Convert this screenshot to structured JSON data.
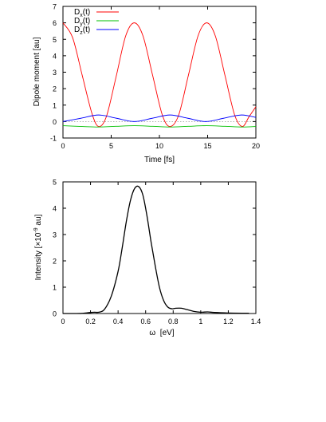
{
  "chart_data": [
    {
      "type": "line",
      "xlabel": "Time [fs]",
      "ylabel": "Dipole moment [au]",
      "xlim": [
        0,
        20
      ],
      "ylim": [
        -1,
        7
      ],
      "xticks": [
        0,
        5,
        10,
        15,
        20
      ],
      "yticks": [
        -1,
        0,
        1,
        2,
        3,
        4,
        5,
        6,
        7
      ],
      "grid": false,
      "legend_position": "top-left",
      "zero_line": true,
      "series": [
        {
          "name": "D_x(t)",
          "label_main": "D",
          "label_sub": "x",
          "label_rest": "(t)",
          "color": "#ff0000",
          "x": [
            0,
            1,
            2,
            3,
            3.7,
            4.5,
            5.5,
            6.5,
            7.4,
            8.3,
            9.3,
            10.3,
            11.1,
            12,
            13,
            14,
            14.9,
            15.8,
            16.8,
            17.8,
            18.6,
            19.3,
            20
          ],
          "y": [
            6.0,
            5.1,
            2.8,
            0.5,
            -0.3,
            0.3,
            2.7,
            5.2,
            6.0,
            5.2,
            2.8,
            0.4,
            -0.3,
            0.4,
            2.8,
            5.2,
            6.0,
            5.2,
            2.8,
            0.4,
            -0.3,
            0.3,
            0.9
          ]
        },
        {
          "name": "D_y(t)",
          "label_main": "D",
          "label_sub": "y",
          "label_rest": "(t)",
          "color": "#00c000",
          "x": [
            0,
            2,
            3.7,
            5.5,
            7.4,
            9.3,
            11.1,
            13,
            14.9,
            16.8,
            18.6,
            20
          ],
          "y": [
            -0.25,
            -0.3,
            -0.33,
            -0.29,
            -0.25,
            -0.29,
            -0.33,
            -0.29,
            -0.25,
            -0.29,
            -0.33,
            -0.3
          ]
        },
        {
          "name": "D_z(t)",
          "label_main": "D",
          "label_sub": "z",
          "label_rest": "(t)",
          "color": "#0000ff",
          "x": [
            0,
            1.85,
            3.7,
            5.55,
            7.4,
            9.25,
            11.1,
            12.95,
            14.8,
            16.65,
            18.5,
            20
          ],
          "y": [
            0.0,
            0.2,
            0.4,
            0.2,
            0.0,
            0.2,
            0.4,
            0.2,
            0.0,
            0.2,
            0.4,
            0.25
          ]
        }
      ]
    },
    {
      "type": "line",
      "xlabel": "ω  [eV]",
      "ylabel_main": "Intensity [×10",
      "ylabel_sup": "-9",
      "ylabel_rest": " au]",
      "xlim": [
        0,
        1.4
      ],
      "ylim": [
        0,
        5
      ],
      "xticks": [
        "0",
        "0.2",
        "0.4",
        "0.6",
        "0.8",
        "1",
        "1.2",
        "1.4"
      ],
      "yticks": [
        0,
        1,
        2,
        3,
        4,
        5
      ],
      "grid": false,
      "series": [
        {
          "color": "#000000",
          "x": [
            0,
            0.1,
            0.15,
            0.2,
            0.23,
            0.26,
            0.3,
            0.35,
            0.4,
            0.43,
            0.46,
            0.49,
            0.52,
            0.55,
            0.58,
            0.61,
            0.64,
            0.67,
            0.7,
            0.73,
            0.76,
            0.79,
            0.82,
            0.86,
            0.9,
            0.95,
            1.0,
            1.05,
            1.1,
            1.2,
            1.3,
            1.35
          ],
          "y": [
            0.0,
            0.0,
            0.01,
            0.04,
            0.05,
            0.05,
            0.15,
            0.65,
            1.6,
            2.5,
            3.5,
            4.3,
            4.75,
            4.82,
            4.5,
            3.7,
            2.7,
            1.8,
            1.0,
            0.5,
            0.25,
            0.18,
            0.2,
            0.2,
            0.15,
            0.08,
            0.05,
            0.06,
            0.04,
            0.02,
            0.01,
            0.01
          ]
        }
      ]
    }
  ]
}
